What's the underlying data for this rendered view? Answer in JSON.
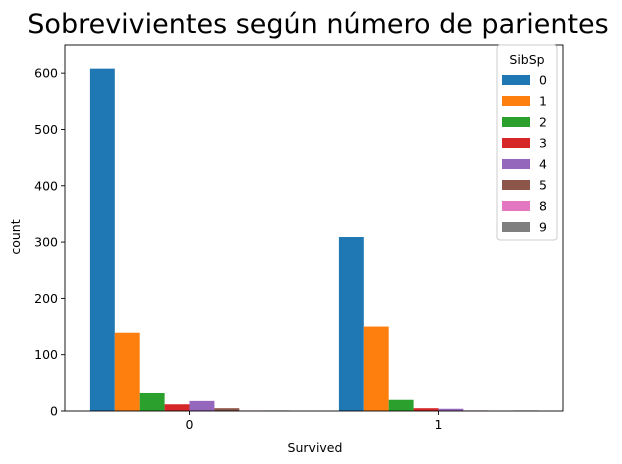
{
  "chart_data": {
    "type": "bar",
    "title": "Sobrevivientes según número de parientes",
    "xlabel": "Survived",
    "ylabel": "count",
    "categories": [
      "0",
      "1"
    ],
    "ylim": [
      0,
      650
    ],
    "yticks": [
      "0",
      "100",
      "200",
      "300",
      "400",
      "500",
      "600"
    ],
    "grid": false,
    "legend": {
      "title": "SibSp",
      "placement": "top-right"
    },
    "series": [
      {
        "name": "0",
        "color": "#1f77b4",
        "values": [
          608,
          309
        ]
      },
      {
        "name": "1",
        "color": "#ff7f0e",
        "values": [
          139,
          150
        ]
      },
      {
        "name": "2",
        "color": "#2ca02c",
        "values": [
          32,
          20
        ]
      },
      {
        "name": "3",
        "color": "#d62728",
        "values": [
          12,
          5
        ]
      },
      {
        "name": "4",
        "color": "#9467bd",
        "values": [
          18,
          4
        ]
      },
      {
        "name": "5",
        "color": "#8c564b",
        "values": [
          5,
          1
        ]
      },
      {
        "name": "8",
        "color": "#e377c2",
        "values": [
          1,
          0
        ]
      },
      {
        "name": "9",
        "color": "#7f7f7f",
        "values": [
          1,
          1
        ]
      }
    ]
  }
}
